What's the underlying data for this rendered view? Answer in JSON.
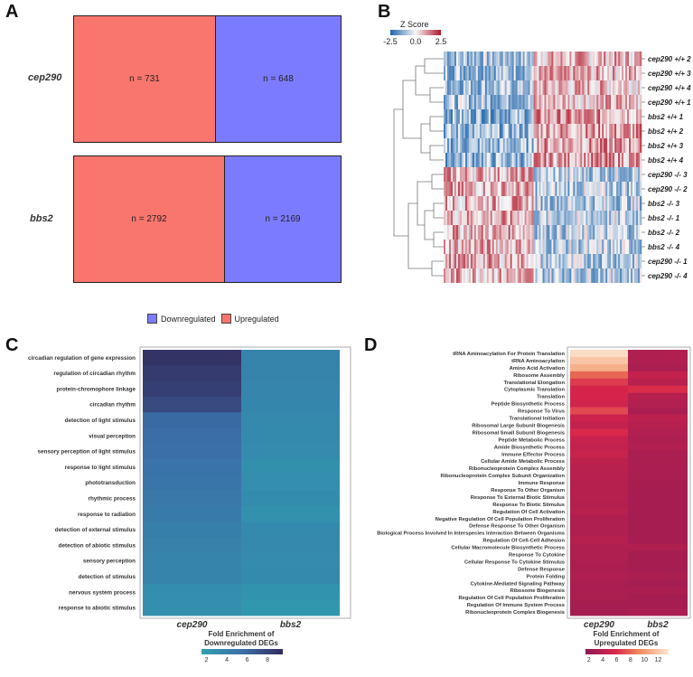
{
  "panel_letters": {
    "a": "A",
    "b": "B",
    "c": "C",
    "d": "D"
  },
  "colors": {
    "up": "#f8766d",
    "down": "#7b7bff"
  },
  "panel_a": {
    "rows": [
      {
        "label": "cep290",
        "up_text": "n = 731",
        "down_text": "n = 648",
        "up": 731,
        "down": 648
      },
      {
        "label": "bbs2",
        "up_text": "n = 2792",
        "down_text": "n = 2169",
        "up": 2792,
        "down": 2169
      }
    ],
    "legend": {
      "down": "Downregulated",
      "up": "Upregulated"
    }
  },
  "panel_b": {
    "scale_title": "Z Score",
    "scale_ticks": [
      "-2.5",
      "0.0",
      "2.5"
    ],
    "samples": [
      "cep290 +/+ 2",
      "cep290 +/+ 3",
      "cep290 +/+ 4",
      "cep290 +/+ 1",
      "bbs2 +/+ 1",
      "bbs2 +/+ 2",
      "bbs2 +/+ 3",
      "bbs2 +/+ 4",
      "cep290 -/- 3",
      "cep290 -/- 2",
      "bbs2 -/- 3",
      "bbs2 -/- 1",
      "bbs2 -/- 2",
      "bbs2 -/- 4",
      "cep290 -/- 1",
      "cep290 -/- 4"
    ]
  },
  "chart_data": [
    {
      "type": "heatmap",
      "title": "Fold Enrichment of Downregulated DEGs",
      "x": [
        "cep290",
        "bbs2"
      ],
      "y": [
        "circadian regulation of gene expression",
        "regulation of circadian rhythm",
        "protein-chromophore linkage",
        "circadian rhythm",
        "detection of light stimulus",
        "visual perception",
        "sensory perception of light stimulus",
        "response to light stimulus",
        "phototransduction",
        "rhythmic process",
        "response to radiation",
        "detection of external stimulus",
        "detection of abiotic stimulus",
        "sensory perception",
        "detection of stimulus",
        "nervous system process",
        "response to abiotic stimulus"
      ],
      "values": [
        [
          9.0,
          3.8
        ],
        [
          8.5,
          3.9
        ],
        [
          8.3,
          3.7
        ],
        [
          7.6,
          3.6
        ],
        [
          5.8,
          3.4
        ],
        [
          5.6,
          3.3
        ],
        [
          5.5,
          3.2
        ],
        [
          5.2,
          2.8
        ],
        [
          5.0,
          3.0
        ],
        [
          4.8,
          3.1
        ],
        [
          4.5,
          2.7
        ],
        [
          4.2,
          3.3
        ],
        [
          4.0,
          3.4
        ],
        [
          3.8,
          3.2
        ],
        [
          3.9,
          3.3
        ],
        [
          3.0,
          2.6
        ],
        [
          2.9,
          2.2
        ]
      ],
      "colorbar": {
        "title_line1": "Fold Enrichment of",
        "title_line2": "Downregulated DEGs",
        "ticks": [
          "2",
          "4",
          "6",
          "8"
        ],
        "range": [
          1.5,
          9.5
        ]
      }
    },
    {
      "type": "heatmap",
      "title": "Fold Enrichment of Upregulated DEGs",
      "x": [
        "cep290",
        "bbs2"
      ],
      "y": [
        "tRNA Aminoacylation For Protein Translation",
        "tRNA Aminoacylation",
        "Amino Acid Activation",
        "Ribosome Assembly",
        "Translational Elongation",
        "Cytoplasmic Translation",
        "Translation",
        "Peptide Biosynthetic Process",
        "Response To Virus",
        "Translational Initiation",
        "Ribosomal Large Subunit Biogenesis",
        "Ribosomal Small Subunit Biogenesis",
        "Peptide Metabolic Process",
        "Amide Biosynthetic Process",
        "Immune Effector Process",
        "Cellular Amide Metabolic Process",
        "Ribonucleoprotein Complex Assembly",
        "Ribonucleoprotein Complex Subunit Organization",
        "Immune Response",
        "Response To Other Organism",
        "Response To External Biotic Stimulus",
        "Response To Biotic Stimulus",
        "Regulation Of Cell Activation",
        "Negative Regulation Of Cell Population Proliferation",
        "Defense Response To Other Organism",
        "Biological Process Involved In Interspecies Interaction Between Organisms",
        "Regulation Of Cell-Cell Adhesion",
        "Cellular Macromolecule Biosynthetic Process",
        "Response To Cytokine",
        "Cellular Response To Cytokine Stimulus",
        "Defense Response",
        "Protein Folding",
        "Cytokine-Mediated Signaling Pathway",
        "Ribosome Biogenesis",
        "Regulation Of Cell Population Proliferation",
        "Regulation Of Immune System Process",
        "Ribonucleoprotein Complex Biogenesis"
      ],
      "values": [
        [
          13.0,
          3.5
        ],
        [
          12.0,
          3.5
        ],
        [
          11.0,
          3.3
        ],
        [
          8.0,
          4.5
        ],
        [
          6.5,
          4.0
        ],
        [
          5.5,
          6.0
        ],
        [
          5.5,
          3.8
        ],
        [
          5.2,
          3.6
        ],
        [
          7.0,
          3.2
        ],
        [
          5.0,
          4.2
        ],
        [
          4.5,
          3.8
        ],
        [
          5.8,
          3.6
        ],
        [
          4.8,
          3.4
        ],
        [
          4.5,
          3.6
        ],
        [
          4.8,
          3.2
        ],
        [
          4.2,
          3.3
        ],
        [
          4.0,
          3.2
        ],
        [
          3.9,
          3.2
        ],
        [
          3.8,
          3.1
        ],
        [
          3.8,
          3.0
        ],
        [
          3.8,
          3.0
        ],
        [
          3.7,
          3.0
        ],
        [
          4.0,
          3.0
        ],
        [
          3.5,
          3.0
        ],
        [
          3.5,
          3.0
        ],
        [
          3.5,
          3.0
        ],
        [
          3.8,
          3.0
        ],
        [
          3.5,
          3.5
        ],
        [
          3.5,
          3.0
        ],
        [
          3.4,
          3.0
        ],
        [
          3.3,
          3.0
        ],
        [
          3.5,
          3.3
        ],
        [
          3.3,
          3.0
        ],
        [
          3.2,
          3.3
        ],
        [
          3.3,
          3.0
        ],
        [
          3.0,
          3.0
        ],
        [
          3.0,
          3.2
        ]
      ],
      "colorbar": {
        "title_line1": "Fold Enrichment of",
        "title_line2": "Upregulated DEGs",
        "ticks": [
          "2",
          "4",
          "6",
          "8",
          "10",
          "12"
        ],
        "range": [
          1.5,
          13.5
        ]
      }
    }
  ]
}
